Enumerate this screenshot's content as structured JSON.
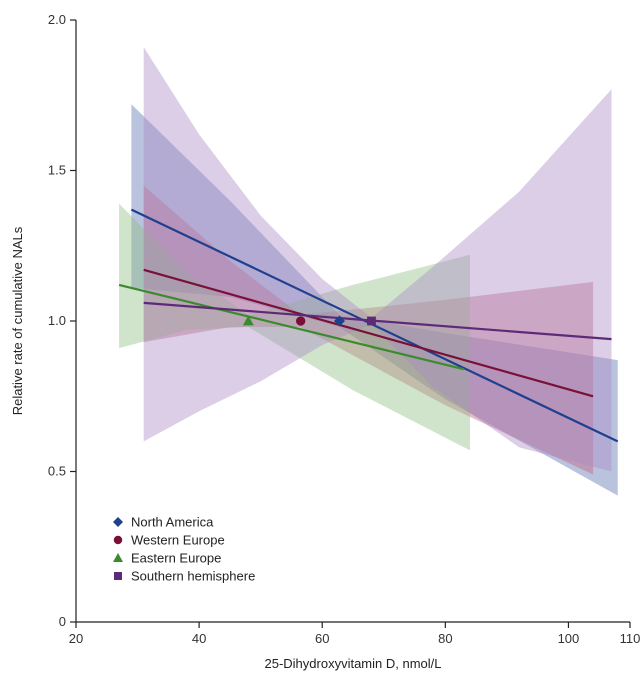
{
  "chart_data": {
    "type": "line",
    "title": "",
    "xlabel": "25-Dihydroxyvitamin D, nmol/L",
    "ylabel": "Relative rate of cumulative NALs",
    "xlim": [
      20,
      110
    ],
    "ylim": [
      0,
      2.0
    ],
    "x_ticks": [
      20,
      40,
      60,
      80,
      100,
      110
    ],
    "y_ticks": [
      0,
      0.5,
      1.0,
      1.5,
      2.0
    ],
    "y_tick_labels": [
      "0",
      "0.5",
      "1.0",
      "1.5",
      "2.0"
    ],
    "grid": false,
    "legend_position": "bottom-left",
    "series": [
      {
        "name": "North America",
        "color": "#1f3f8f",
        "band_color": "#5a6fb0",
        "marker": "diamond",
        "reference_point": [
          62.8,
          1.0
        ],
        "line": [
          [
            29,
            1.37
          ],
          [
            108,
            0.6
          ]
        ],
        "band_upper": [
          [
            29,
            1.72
          ],
          [
            45,
            1.4
          ],
          [
            62.8,
            1.02
          ],
          [
            80,
            0.96
          ],
          [
            108,
            0.87
          ]
        ],
        "band_lower": [
          [
            29,
            1.11
          ],
          [
            45,
            1.08
          ],
          [
            62.8,
            0.98
          ],
          [
            80,
            0.74
          ],
          [
            108,
            0.42
          ]
        ]
      },
      {
        "name": "Western Europe",
        "color": "#7a1038",
        "band_color": "#c0607a",
        "marker": "circle",
        "reference_point": [
          56.5,
          1.0
        ],
        "line": [
          [
            31,
            1.17
          ],
          [
            104,
            0.75
          ]
        ],
        "band_upper": [
          [
            31,
            1.45
          ],
          [
            45,
            1.2
          ],
          [
            56.5,
            1.02
          ],
          [
            80,
            1.07
          ],
          [
            104,
            1.13
          ]
        ],
        "band_lower": [
          [
            31,
            0.93
          ],
          [
            45,
            0.98
          ],
          [
            56.5,
            0.98
          ],
          [
            80,
            0.72
          ],
          [
            104,
            0.49
          ]
        ]
      },
      {
        "name": "Eastern Europe",
        "color": "#3c8a2e",
        "band_color": "#8fbf82",
        "marker": "triangle",
        "reference_point": [
          48,
          1.0
        ],
        "line": [
          [
            27,
            1.12
          ],
          [
            83,
            0.84
          ]
        ],
        "band_upper": [
          [
            27,
            1.39
          ],
          [
            38,
            1.16
          ],
          [
            48,
            1.02
          ],
          [
            65,
            1.12
          ],
          [
            84,
            1.22
          ]
        ],
        "band_lower": [
          [
            27,
            0.91
          ],
          [
            38,
            0.97
          ],
          [
            48,
            0.98
          ],
          [
            65,
            0.77
          ],
          [
            84,
            0.57
          ]
        ]
      },
      {
        "name": "Southern hemisphere",
        "color": "#5d2a78",
        "band_color": "#a98ac4",
        "marker": "square",
        "reference_point": [
          68,
          1.0
        ],
        "line": [
          [
            31,
            1.06
          ],
          [
            107,
            0.94
          ]
        ],
        "band_upper": [
          [
            31,
            1.91
          ],
          [
            40,
            1.62
          ],
          [
            50,
            1.35
          ],
          [
            60,
            1.14
          ],
          [
            68,
            1.01
          ],
          [
            78,
            1.18
          ],
          [
            92,
            1.43
          ],
          [
            107,
            1.77
          ]
        ],
        "band_lower": [
          [
            31,
            0.6
          ],
          [
            40,
            0.7
          ],
          [
            50,
            0.8
          ],
          [
            60,
            0.92
          ],
          [
            68,
            0.99
          ],
          [
            78,
            0.78
          ],
          [
            92,
            0.58
          ],
          [
            107,
            0.5
          ]
        ]
      }
    ]
  }
}
